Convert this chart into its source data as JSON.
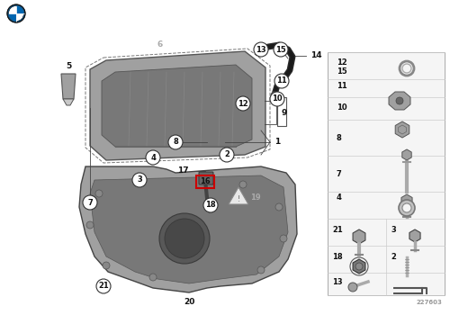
{
  "bg_color": "#ffffff",
  "diagram_code": "227603",
  "label_color": "#111111",
  "circle_color": "#ffffff",
  "circle_edge": "#333333",
  "highlight_color": "#cc0000",
  "gray_light": "#c8c8c8",
  "gray_mid": "#a0a0a0",
  "gray_dark": "#787878",
  "gray_darkest": "#606060",
  "line_color": "#444444",
  "panel_bg": "#f5f5f5",
  "panel_border": "#aaaaaa"
}
